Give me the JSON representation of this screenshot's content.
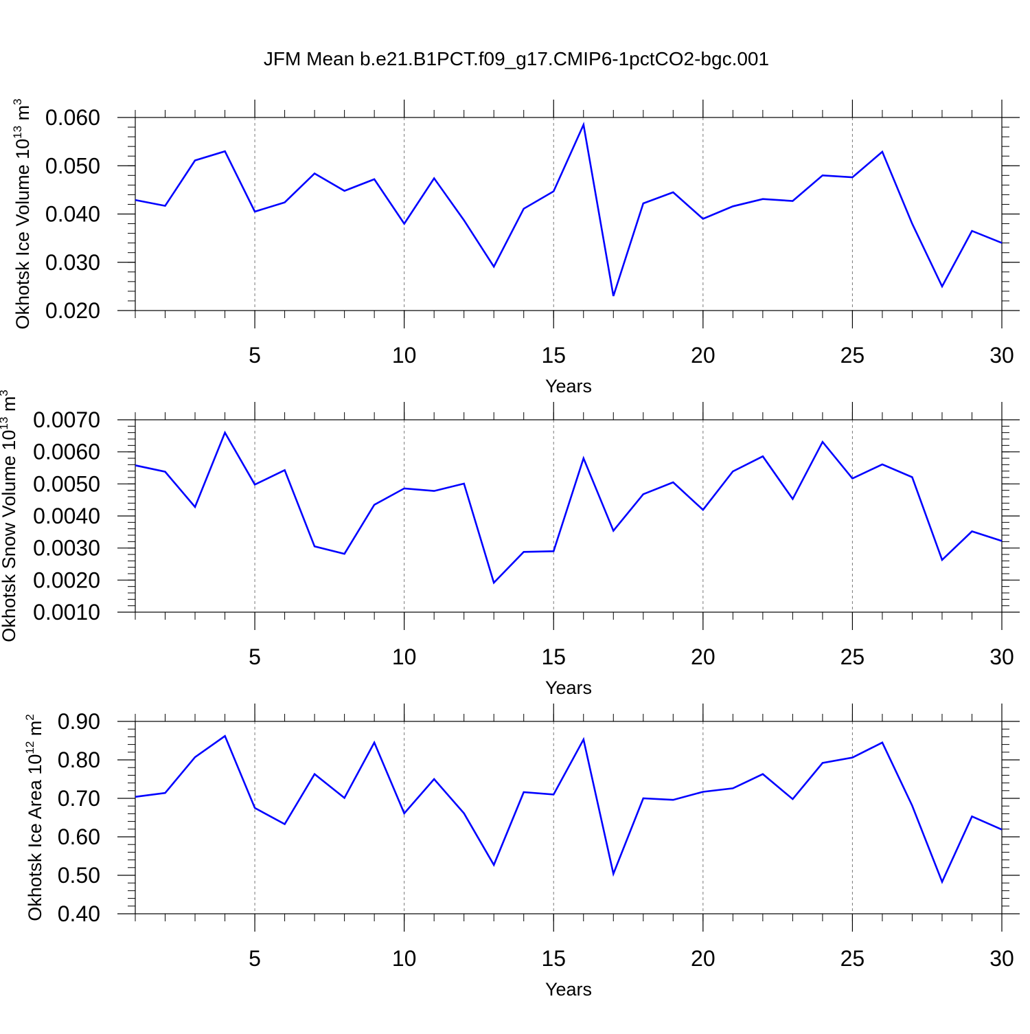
{
  "figure_title": "JFM Mean b.e21.B1PCT.f09_g17.CMIP6-1pctCO2-bgc.001",
  "line_color": "#0000ff",
  "chart_data": [
    {
      "type": "line",
      "xlabel": "Years",
      "ylabel": {
        "main": "Okhotsk Ice Volume 10",
        "exp": "13",
        "unit": " m",
        "unit_exp": "3"
      },
      "xlim": [
        1,
        30
      ],
      "ylim": [
        0.02,
        0.06
      ],
      "xticks": [
        5,
        10,
        15,
        20,
        25,
        30
      ],
      "xtick_labels": [
        "5",
        "10",
        "15",
        "20",
        "25",
        "30"
      ],
      "yticks": [
        0.02,
        0.03,
        0.04,
        0.05,
        0.06
      ],
      "ytick_labels": [
        "0.020",
        "0.030",
        "0.040",
        "0.050",
        "0.060"
      ],
      "x": [
        1,
        2,
        3,
        4,
        5,
        6,
        7,
        8,
        9,
        10,
        11,
        12,
        13,
        14,
        15,
        16,
        17,
        18,
        19,
        20,
        21,
        22,
        23,
        24,
        25,
        26,
        27,
        28,
        29,
        30
      ],
      "values": [
        0.0429,
        0.0417,
        0.0511,
        0.053,
        0.0405,
        0.0424,
        0.0484,
        0.0448,
        0.0472,
        0.038,
        0.0474,
        0.0387,
        0.0291,
        0.0411,
        0.0447,
        0.0585,
        0.023,
        0.0422,
        0.0445,
        0.039,
        0.0416,
        0.0431,
        0.0427,
        0.048,
        0.0476,
        0.0529,
        0.038,
        0.025,
        0.0365,
        0.034
      ]
    },
    {
      "type": "line",
      "xlabel": "Years",
      "ylabel": {
        "main": "Okhotsk Snow Volume 10",
        "exp": "13",
        "unit": " m",
        "unit_exp": "3"
      },
      "xlim": [
        1,
        30
      ],
      "ylim": [
        0.001,
        0.007
      ],
      "xticks": [
        5,
        10,
        15,
        20,
        25,
        30
      ],
      "xtick_labels": [
        "5",
        "10",
        "15",
        "20",
        "25",
        "30"
      ],
      "yticks": [
        0.001,
        0.002,
        0.003,
        0.004,
        0.005,
        0.006,
        0.007
      ],
      "ytick_labels": [
        "0.0010",
        "0.0020",
        "0.0030",
        "0.0040",
        "0.0050",
        "0.0060",
        "0.0070"
      ],
      "x": [
        1,
        2,
        3,
        4,
        5,
        6,
        7,
        8,
        9,
        10,
        11,
        12,
        13,
        14,
        15,
        16,
        17,
        18,
        19,
        20,
        21,
        22,
        23,
        24,
        25,
        26,
        27,
        28,
        29,
        30
      ],
      "values": [
        0.00558,
        0.00538,
        0.00428,
        0.0066,
        0.00498,
        0.00543,
        0.00305,
        0.00282,
        0.00435,
        0.00486,
        0.00478,
        0.00501,
        0.00192,
        0.00288,
        0.0029,
        0.0058,
        0.00354,
        0.00468,
        0.00505,
        0.00419,
        0.00539,
        0.00586,
        0.00453,
        0.00631,
        0.00517,
        0.00561,
        0.00521,
        0.00263,
        0.00352,
        0.00322
      ]
    },
    {
      "type": "line",
      "xlabel": "Years",
      "ylabel": {
        "main": "Okhotsk Ice Area 10",
        "exp": "12",
        "unit": " m",
        "unit_exp": "2"
      },
      "xlim": [
        1,
        30
      ],
      "ylim": [
        0.4,
        0.9
      ],
      "xticks": [
        5,
        10,
        15,
        20,
        25,
        30
      ],
      "xtick_labels": [
        "5",
        "10",
        "15",
        "20",
        "25",
        "30"
      ],
      "yticks": [
        0.4,
        0.5,
        0.6,
        0.7,
        0.8,
        0.9
      ],
      "ytick_labels": [
        "0.40",
        "0.50",
        "0.60",
        "0.70",
        "0.80",
        "0.90"
      ],
      "x": [
        1,
        2,
        3,
        4,
        5,
        6,
        7,
        8,
        9,
        10,
        11,
        12,
        13,
        14,
        15,
        16,
        17,
        18,
        19,
        20,
        21,
        22,
        23,
        24,
        25,
        26,
        27,
        28,
        29,
        30
      ],
      "values": [
        0.704,
        0.714,
        0.807,
        0.862,
        0.675,
        0.633,
        0.763,
        0.701,
        0.845,
        0.661,
        0.75,
        0.661,
        0.527,
        0.716,
        0.71,
        0.853,
        0.504,
        0.7,
        0.696,
        0.717,
        0.726,
        0.763,
        0.698,
        0.792,
        0.806,
        0.845,
        0.681,
        0.483,
        0.653,
        0.619
      ]
    }
  ]
}
